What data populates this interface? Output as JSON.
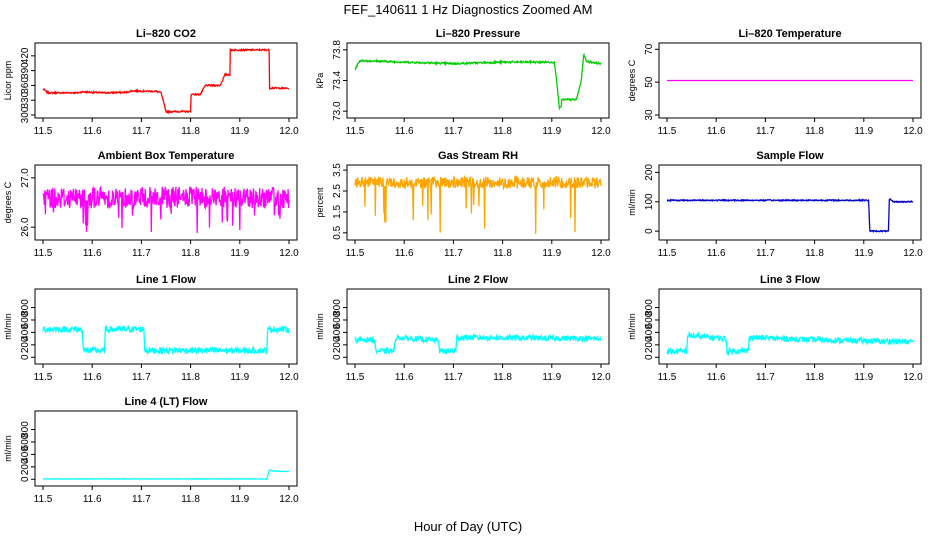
{
  "main_title": "FEF_140611  1 Hz Diagnostics Zoomed AM",
  "x_label": "Hour of Day (UTC)",
  "chart_data": [
    {
      "type": "line",
      "title": "Li–820 CO2",
      "ylabel": "Licor ppm",
      "color": "#ff0000",
      "xlim": [
        11.5,
        12.0
      ],
      "xticks": [
        "11.5",
        "11.6",
        "11.7",
        "11.8",
        "11.9",
        "12.0"
      ],
      "ylim": [
        300,
        440
      ],
      "yticks": [
        "300",
        "330",
        "360",
        "390",
        "420"
      ],
      "ytick_values": [
        300,
        330,
        360,
        390,
        420
      ],
      "noise": 1.5,
      "points": [
        [
          11.5,
          353
        ],
        [
          11.51,
          345
        ],
        [
          11.57,
          345
        ],
        [
          11.58,
          347
        ],
        [
          11.6,
          346
        ],
        [
          11.62,
          345
        ],
        [
          11.67,
          346
        ],
        [
          11.68,
          349
        ],
        [
          11.73,
          348
        ],
        [
          11.74,
          345
        ],
        [
          11.75,
          307
        ],
        [
          11.8,
          307
        ],
        [
          11.8,
          342
        ],
        [
          11.82,
          342
        ],
        [
          11.83,
          360
        ],
        [
          11.86,
          360
        ],
        [
          11.87,
          382
        ],
        [
          11.88,
          382
        ],
        [
          11.88,
          432
        ],
        [
          11.96,
          432
        ],
        [
          11.96,
          355
        ],
        [
          12.0,
          354
        ]
      ]
    },
    {
      "type": "line",
      "title": "Li–820 Pressure",
      "ylabel": "kPa",
      "color": "#00cc00",
      "xlim": [
        11.5,
        12.0
      ],
      "xticks": [
        "11.5",
        "11.6",
        "11.7",
        "11.8",
        "11.9",
        "12.0"
      ],
      "ylim": [
        72.95,
        73.85
      ],
      "yticks": [
        "73.0",
        "73.4",
        "73.8"
      ],
      "ytick_values": [
        73.0,
        73.4,
        73.8
      ],
      "noise": 0.012,
      "points": [
        [
          11.5,
          73.55
        ],
        [
          11.51,
          73.66
        ],
        [
          11.6,
          73.64
        ],
        [
          11.7,
          73.62
        ],
        [
          11.8,
          73.64
        ],
        [
          11.905,
          73.64
        ],
        [
          11.91,
          73.4
        ],
        [
          11.915,
          73.05
        ],
        [
          11.92,
          73.05
        ],
        [
          11.92,
          73.15
        ],
        [
          11.95,
          73.15
        ],
        [
          11.96,
          73.4
        ],
        [
          11.965,
          73.75
        ],
        [
          11.97,
          73.65
        ],
        [
          12.0,
          73.62
        ]
      ]
    },
    {
      "type": "line",
      "title": "Li–820 Temperature",
      "ylabel": "degrees C",
      "color": "#ff00ff",
      "xlim": [
        11.5,
        12.0
      ],
      "xticks": [
        "11.5",
        "11.6",
        "11.7",
        "11.8",
        "11.9",
        "12.0"
      ],
      "ylim": [
        30,
        72
      ],
      "yticks": [
        "30",
        "50",
        "70"
      ],
      "ytick_values": [
        30,
        50,
        70
      ],
      "noise": 0,
      "points": [
        [
          11.5,
          51
        ],
        [
          12.0,
          51
        ]
      ]
    },
    {
      "type": "line",
      "title": "Ambient Box Temperature",
      "ylabel": "degrees C",
      "color": "#ff00ff",
      "xlim": [
        11.5,
        12.0
      ],
      "xticks": [
        "11.5",
        "11.6",
        "11.7",
        "11.8",
        "11.9",
        "12.0"
      ],
      "ylim": [
        25.8,
        27.2
      ],
      "yticks": [
        "26.0",
        "27.0"
      ],
      "ytick_values": [
        26.0,
        27.0
      ],
      "noise": 0.22,
      "spikes": 0.05,
      "spike_min": 25.85,
      "points": [
        [
          11.5,
          26.6
        ],
        [
          12.0,
          26.6
        ]
      ]
    },
    {
      "type": "line",
      "title": "Gas Stream RH",
      "ylabel": "percent",
      "color": "#ffa500",
      "xlim": [
        11.5,
        12.0
      ],
      "xticks": [
        "11.5",
        "11.6",
        "11.7",
        "11.8",
        "11.9",
        "12.0"
      ],
      "ylim": [
        0.3,
        3.6
      ],
      "yticks": [
        "0.5",
        "1.5",
        "2.5",
        "3.5"
      ],
      "ytick_values": [
        0.5,
        1.5,
        2.5,
        3.5
      ],
      "noise": 0.28,
      "spikes": 0.04,
      "spike_min": 0.4,
      "points": [
        [
          11.5,
          2.9
        ],
        [
          12.0,
          2.9
        ]
      ]
    },
    {
      "type": "line",
      "title": "Sample Flow",
      "ylabel": "ml/min",
      "color": "#0000cc",
      "xlim": [
        11.5,
        12.0
      ],
      "xticks": [
        "11.5",
        "11.6",
        "11.7",
        "11.8",
        "11.9",
        "12.0"
      ],
      "ylim": [
        -20,
        215
      ],
      "yticks": [
        "0",
        "100",
        "200"
      ],
      "ytick_values": [
        0,
        100,
        200
      ],
      "noise": 2,
      "points": [
        [
          11.5,
          105
        ],
        [
          11.91,
          105
        ],
        [
          11.912,
          0
        ],
        [
          11.95,
          0
        ],
        [
          11.952,
          110
        ],
        [
          11.96,
          100
        ],
        [
          12.0,
          100
        ]
      ]
    },
    {
      "type": "line",
      "title": "Line 1 Flow",
      "ylabel": "ml/min",
      "color": "#00ffff",
      "xlim": [
        11.5,
        12.0
      ],
      "xticks": [
        "11.5",
        "11.6",
        "11.7",
        "11.8",
        "11.9",
        "12.0"
      ],
      "ylim": [
        -60,
        1050
      ],
      "yticks": [
        "0",
        "200",
        "400",
        "600",
        "800"
      ],
      "ytick_values": [
        0,
        200,
        400,
        600,
        800
      ],
      "noise": 50,
      "points": [
        [
          11.5,
          450
        ],
        [
          11.58,
          450
        ],
        [
          11.582,
          110
        ],
        [
          11.625,
          110
        ],
        [
          11.627,
          450
        ],
        [
          11.705,
          450
        ],
        [
          11.707,
          110
        ],
        [
          11.955,
          110
        ],
        [
          11.957,
          450
        ],
        [
          12.0,
          450
        ]
      ]
    },
    {
      "type": "line",
      "title": "Line 2 Flow",
      "ylabel": "ml/min",
      "color": "#00ffff",
      "xlim": [
        11.5,
        12.0
      ],
      "xticks": [
        "11.5",
        "11.6",
        "11.7",
        "11.8",
        "11.9",
        "12.0"
      ],
      "ylim": [
        -60,
        1050
      ],
      "yticks": [
        "0",
        "200",
        "400",
        "600",
        "800"
      ],
      "ytick_values": [
        0,
        200,
        400,
        600,
        800
      ],
      "noise": 45,
      "points": [
        [
          11.5,
          280
        ],
        [
          11.54,
          280
        ],
        [
          11.542,
          100
        ],
        [
          11.58,
          100
        ],
        [
          11.582,
          320
        ],
        [
          11.67,
          270
        ],
        [
          11.672,
          100
        ],
        [
          11.705,
          100
        ],
        [
          11.707,
          320
        ],
        [
          12.0,
          300
        ]
      ]
    },
    {
      "type": "line",
      "title": "Line 3 Flow",
      "ylabel": "ml/min",
      "color": "#00ffff",
      "xlim": [
        11.5,
        12.0
      ],
      "xticks": [
        "11.5",
        "11.6",
        "11.7",
        "11.8",
        "11.9",
        "12.0"
      ],
      "ylim": [
        -60,
        1050
      ],
      "yticks": [
        "0",
        "200",
        "400",
        "600",
        "800"
      ],
      "ytick_values": [
        0,
        200,
        400,
        600,
        800
      ],
      "noise": 45,
      "points": [
        [
          11.5,
          90
        ],
        [
          11.54,
          100
        ],
        [
          11.542,
          350
        ],
        [
          11.62,
          300
        ],
        [
          11.622,
          100
        ],
        [
          11.665,
          100
        ],
        [
          11.667,
          320
        ],
        [
          11.8,
          280
        ],
        [
          12.0,
          250
        ]
      ]
    },
    {
      "type": "line",
      "title": "Line 4 (LT) Flow",
      "ylabel": "ml/min",
      "color": "#00ffff",
      "xlim": [
        11.5,
        12.0
      ],
      "xticks": [
        "11.5",
        "11.6",
        "11.7",
        "11.8",
        "11.9",
        "12.0"
      ],
      "ylim": [
        -60,
        1050
      ],
      "yticks": [
        "0",
        "200",
        "400",
        "600",
        "800"
      ],
      "ytick_values": [
        0,
        200,
        400,
        600,
        800
      ],
      "noise": 3,
      "points": [
        [
          11.5,
          5
        ],
        [
          11.955,
          5
        ],
        [
          11.96,
          150
        ],
        [
          11.97,
          130
        ],
        [
          12.0,
          125
        ]
      ]
    }
  ]
}
